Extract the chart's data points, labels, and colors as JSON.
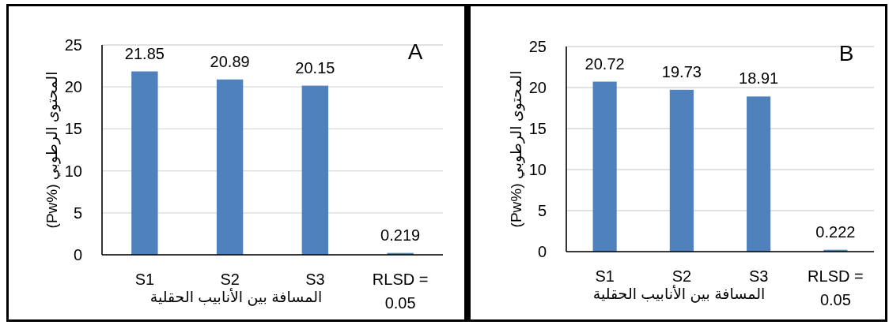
{
  "chart_data": [
    {
      "type": "bar",
      "annotations": [
        "A"
      ],
      "xlabel": "المسافة بين الأنابيب الحقلية",
      "ylabel": "(Pw%) المحتوى الرطوبي",
      "categories": [
        "S1",
        "S2",
        "S3",
        "RLSD = 0.05"
      ],
      "values": [
        21.85,
        20.89,
        20.15,
        0.219
      ],
      "color": "#4f81bd",
      "ylim": [
        0,
        25
      ],
      "yticks": [
        0,
        5,
        10,
        15,
        20,
        25
      ],
      "grid": "y",
      "data_labels": true
    },
    {
      "type": "bar",
      "annotations": [
        "B"
      ],
      "xlabel": "المسافة بين الأنابيب الحقلية",
      "ylabel": "(Pw%) المحتوى الرطوبي",
      "categories": [
        "S1",
        "S2",
        "S3",
        "RLSD = 0.05"
      ],
      "values": [
        20.72,
        19.73,
        18.91,
        0.222
      ],
      "color": "#4f81bd",
      "ylim": [
        0,
        25
      ],
      "yticks": [
        0,
        5,
        10,
        15,
        20,
        25
      ],
      "grid": "y",
      "data_labels": true
    }
  ]
}
